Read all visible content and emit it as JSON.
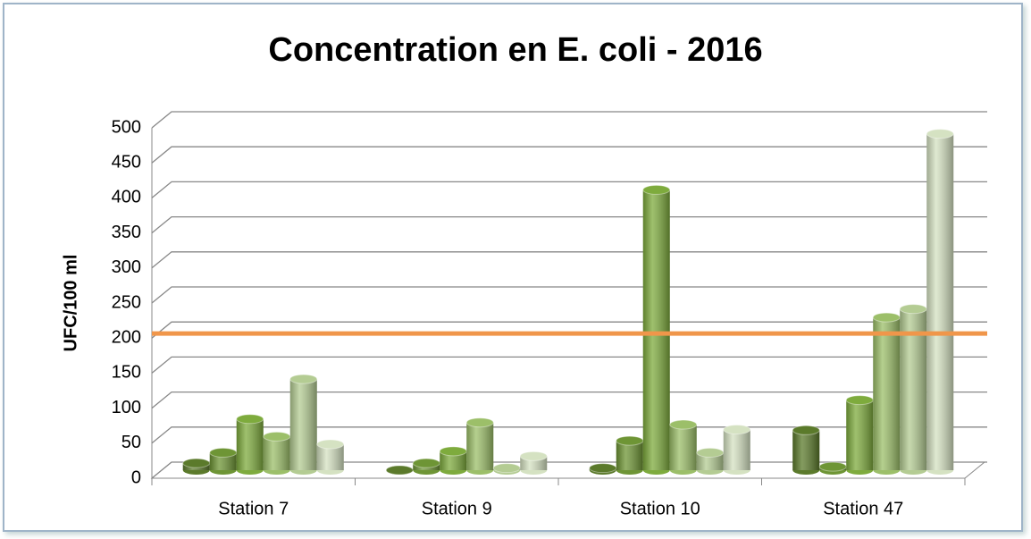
{
  "chart_data": {
    "type": "bar3d",
    "title": "Concentration en E. coli - 2016",
    "y_axis_label": "UFC/100 ml",
    "categories": [
      "Station 7",
      "Station  9",
      "Station 10",
      "Station 47"
    ],
    "series": [
      {
        "color": "#5b7a2b",
        "values": [
          10,
          0,
          3,
          57
        ]
      },
      {
        "color": "#6e9535",
        "values": [
          25,
          10,
          42,
          5
        ]
      },
      {
        "color": "#7eab3d",
        "values": [
          73,
          27,
          400,
          100
        ]
      },
      {
        "color": "#9cbf69",
        "values": [
          48,
          68,
          65,
          218
        ]
      },
      {
        "color": "#b4cc93",
        "values": [
          130,
          3,
          25,
          230
        ]
      },
      {
        "color": "#d5e2c2",
        "values": [
          37,
          20,
          58,
          480
        ]
      }
    ],
    "reference_line": {
      "value": 195,
      "color": "#f0964a"
    },
    "ylim": [
      0,
      500
    ],
    "yticks": [
      0,
      50,
      100,
      150,
      200,
      250,
      300,
      350,
      400,
      450,
      500
    ],
    "grid": true
  }
}
